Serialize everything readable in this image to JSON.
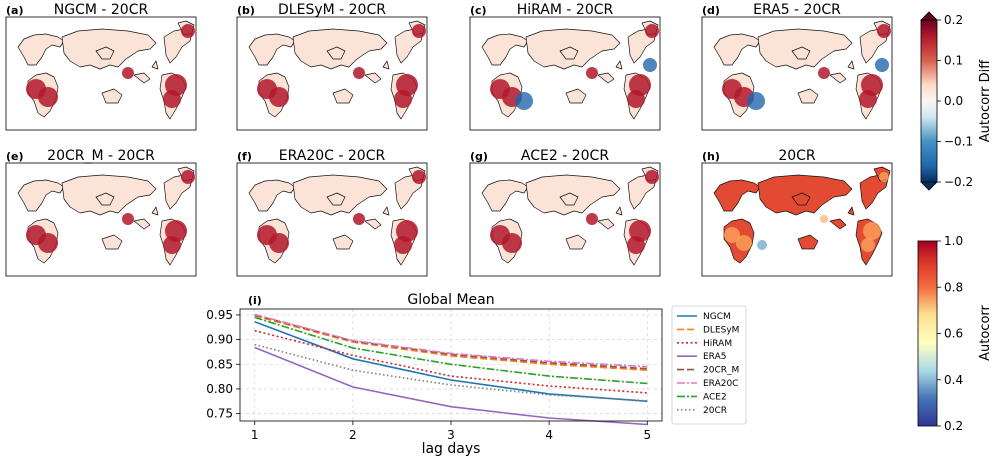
{
  "maps": [
    {
      "id": "a",
      "label": "(a)",
      "title": "NGCM - 20CR"
    },
    {
      "id": "b",
      "label": "(b)",
      "title": "DLESyM - 20CR"
    },
    {
      "id": "c",
      "label": "(c)",
      "title": "HiRAM - 20CR"
    },
    {
      "id": "d",
      "label": "(d)",
      "title": "ERA5 - 20CR"
    },
    {
      "id": "e",
      "label": "(e)",
      "title": "20CR_M - 20CR"
    },
    {
      "id": "f",
      "label": "(f)",
      "title": "ERA20C - 20CR"
    },
    {
      "id": "g",
      "label": "(g)",
      "title": "ACE2 - 20CR"
    },
    {
      "id": "h",
      "label": "(h)",
      "title": "20CR"
    }
  ],
  "colorbar_diff": {
    "label": "Autocorr Diff",
    "ticks": [
      "0.2",
      "0.1",
      "0.0",
      "−0.1",
      "−0.2"
    ],
    "range": [
      -0.2,
      0.2
    ]
  },
  "colorbar_abs": {
    "label": "Autocorr",
    "ticks": [
      "1.0",
      "0.8",
      "0.6",
      "0.4",
      "0.2"
    ],
    "range": [
      0.2,
      1.0
    ]
  },
  "colors": {
    "red": "#b2182b",
    "blue": "#2166ac",
    "white": "#f7f7f7"
  },
  "chart_data": {
    "type": "line",
    "panel_label": "(i)",
    "title": "Global Mean",
    "xlabel": "lag days",
    "ylabel": "",
    "x": [
      1,
      2,
      3,
      4,
      5
    ],
    "x_ticks": [
      "1",
      "2",
      "3",
      "4",
      "5"
    ],
    "y_ticks": [
      "0.95",
      "0.90",
      "0.85",
      "0.80",
      "0.75"
    ],
    "xlim": [
      0.85,
      5.15
    ],
    "ylim": [
      0.735,
      0.962
    ],
    "grid": true,
    "legend_position": "right-outside",
    "series": [
      {
        "name": "NGCM",
        "color": "#1f77b4",
        "dash": "",
        "values": [
          0.936,
          0.861,
          0.818,
          0.79,
          0.775
        ]
      },
      {
        "name": "DLESyM",
        "color": "#ff7f0e",
        "dash": "7,3",
        "values": [
          0.948,
          0.895,
          0.867,
          0.85,
          0.838
        ]
      },
      {
        "name": "HiRAM",
        "color": "#d62728",
        "dash": "2,2.5",
        "values": [
          0.918,
          0.868,
          0.826,
          0.806,
          0.792
        ]
      },
      {
        "name": "ERA5",
        "color": "#9467bd",
        "dash": "",
        "values": [
          0.884,
          0.804,
          0.764,
          0.741,
          0.728
        ]
      },
      {
        "name": "20CR_M",
        "color": "#8c564b",
        "dash": "7,3",
        "values": [
          0.95,
          0.897,
          0.87,
          0.853,
          0.841
        ]
      },
      {
        "name": "ERA20C",
        "color": "#e377c2",
        "dash": "8,2,2,2",
        "values": [
          0.951,
          0.898,
          0.872,
          0.856,
          0.845
        ]
      },
      {
        "name": "ACE2",
        "color": "#2ca02c",
        "dash": "8,2,2,2",
        "values": [
          0.945,
          0.883,
          0.85,
          0.826,
          0.811
        ]
      },
      {
        "name": "20CR",
        "color": "#7f7f7f",
        "dash": "1.5,2.5",
        "values": [
          0.89,
          0.838,
          0.808,
          0.788,
          0.776
        ]
      }
    ]
  }
}
